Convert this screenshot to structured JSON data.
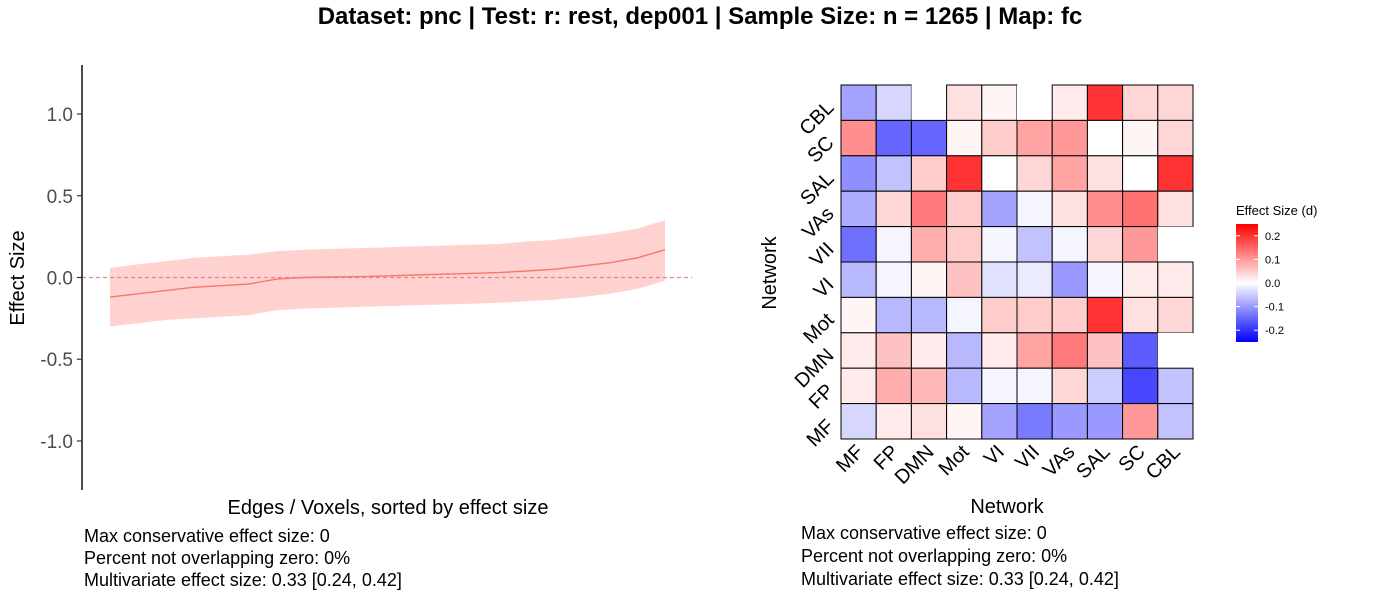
{
  "title": "Dataset: pnc   |  Test: r: rest, dep001   |   Sample Size: n = 1265   |  Map: fc",
  "colors": {
    "line": "#f8766d",
    "ribbon": "#ffd1cf",
    "zero_line": "#d98c8c",
    "neg": "#0000ff",
    "mid": "#ffffff",
    "pos": "#ff0000"
  },
  "chart_data": [
    {
      "type": "line",
      "subtype": "sorted effect sizes with confidence ribbon",
      "xlabel": "Edges / Voxels, sorted by effect size",
      "ylabel": "Effect Size",
      "ylim": [
        -1.3,
        1.3
      ],
      "yticks": [
        -1.0,
        -0.5,
        0.0,
        0.5,
        1.0
      ],
      "ytick_labels": [
        "-1.0",
        "-0.5",
        "0.0",
        "0.5",
        "1.0"
      ],
      "reference_line": 0,
      "x": [
        0,
        0.05,
        0.1,
        0.15,
        0.2,
        0.25,
        0.3,
        0.35,
        0.4,
        0.45,
        0.5,
        0.55,
        0.6,
        0.65,
        0.7,
        0.75,
        0.8,
        0.85,
        0.9,
        0.95,
        1.0
      ],
      "estimate": [
        -0.12,
        -0.1,
        -0.08,
        -0.06,
        -0.05,
        -0.04,
        -0.01,
        0.0,
        0.003,
        0.005,
        0.01,
        0.015,
        0.02,
        0.025,
        0.03,
        0.04,
        0.05,
        0.07,
        0.09,
        0.12,
        0.17
      ],
      "lower": [
        -0.3,
        -0.28,
        -0.26,
        -0.25,
        -0.24,
        -0.23,
        -0.2,
        -0.19,
        -0.185,
        -0.18,
        -0.175,
        -0.17,
        -0.165,
        -0.16,
        -0.155,
        -0.145,
        -0.135,
        -0.12,
        -0.1,
        -0.07,
        -0.02
      ],
      "upper": [
        0.06,
        0.08,
        0.1,
        0.12,
        0.13,
        0.14,
        0.16,
        0.17,
        0.175,
        0.18,
        0.185,
        0.19,
        0.195,
        0.2,
        0.205,
        0.22,
        0.23,
        0.25,
        0.27,
        0.3,
        0.35
      ],
      "grid": false,
      "captions": [
        "Max conservative effect size: 0",
        "Percent not overlapping zero: 0%",
        "Multivariate effect size: 0.33 [0.24, 0.42]"
      ]
    },
    {
      "type": "heatmap",
      "xlabel": "Network",
      "ylabel": "Network",
      "networks": [
        "MF",
        "FP",
        "DMN",
        "Mot",
        "VI",
        "VII",
        "VAs",
        "SAL",
        "SC",
        "CBL"
      ],
      "rows_top_to_bottom": [
        "CBL",
        "SC",
        "SAL",
        "VAs",
        "VII",
        "VI",
        "Mot",
        "DMN",
        "FP",
        "MF"
      ],
      "values": [
        [
          -0.09,
          -0.04,
          null,
          0.03,
          0.01,
          null,
          0.02,
          0.2,
          0.04,
          0.04
        ],
        [
          0.11,
          -0.15,
          -0.15,
          0.01,
          0.05,
          0.09,
          0.1,
          0.0,
          0.01,
          0.04
        ],
        [
          -0.11,
          -0.06,
          0.05,
          0.2,
          0.0,
          0.04,
          0.09,
          0.03,
          0.0,
          0.2
        ],
        [
          -0.08,
          0.04,
          0.13,
          0.05,
          -0.09,
          -0.01,
          0.03,
          0.11,
          0.14,
          0.03
        ],
        [
          -0.14,
          -0.01,
          0.08,
          0.05,
          -0.01,
          -0.06,
          -0.01,
          0.04,
          0.1,
          null
        ],
        [
          -0.07,
          -0.01,
          0.01,
          0.06,
          -0.03,
          -0.02,
          -0.1,
          -0.01,
          0.02,
          0.02
        ],
        [
          0.01,
          -0.07,
          -0.07,
          -0.01,
          0.05,
          0.05,
          0.05,
          0.2,
          0.03,
          0.04
        ],
        [
          0.02,
          0.06,
          0.02,
          -0.07,
          0.02,
          0.09,
          0.13,
          0.06,
          -0.16,
          null
        ],
        [
          0.02,
          0.08,
          0.07,
          -0.07,
          -0.01,
          -0.01,
          0.04,
          -0.05,
          -0.18,
          -0.06
        ],
        [
          -0.04,
          0.02,
          0.03,
          0.01,
          -0.09,
          -0.13,
          -0.1,
          -0.1,
          0.1,
          -0.06
        ]
      ],
      "legend": {
        "title": "Effect Size (d)",
        "range": [
          -0.25,
          0.25
        ],
        "ticks": [
          0.2,
          0.1,
          0.0,
          -0.1,
          -0.2
        ],
        "tick_labels": [
          "0.2",
          "0.1",
          "0.0",
          "-0.1",
          "-0.2"
        ],
        "placement": "right"
      },
      "captions": [
        "Max conservative effect size: 0",
        "Percent not overlapping zero: 0%",
        "Multivariate effect size: 0.33 [0.24, 0.42]"
      ]
    }
  ]
}
